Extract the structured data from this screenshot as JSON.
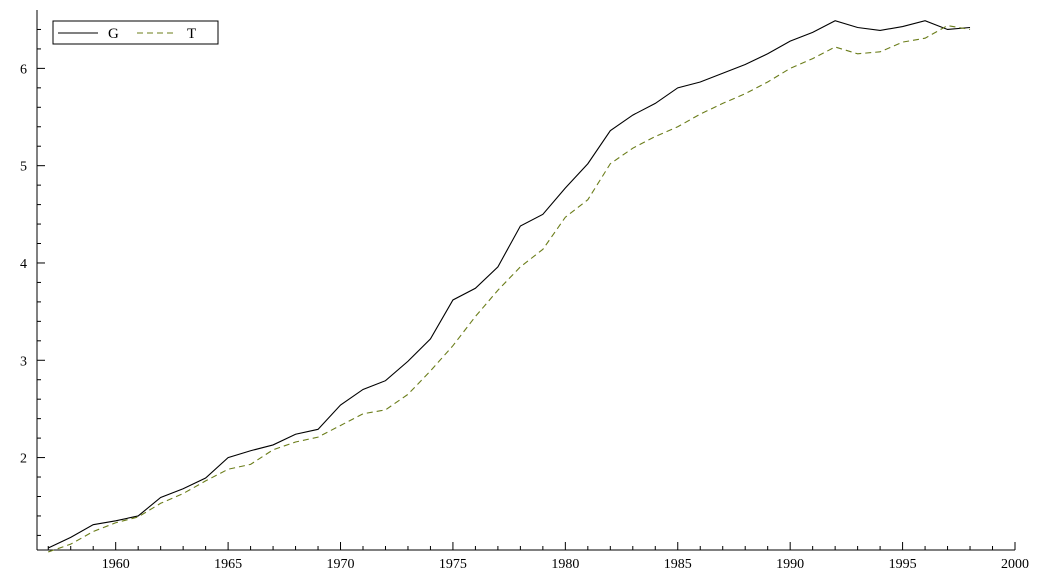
{
  "chart_data": {
    "type": "line",
    "title": "",
    "xlabel": "",
    "ylabel": "",
    "xlim": [
      1956.5,
      2000
    ],
    "ylim": [
      1.05,
      6.6
    ],
    "grid": false,
    "legend": {
      "placement": "top-left",
      "entries": [
        "G",
        "T"
      ]
    },
    "x_ticks": [
      1960,
      1965,
      1970,
      1975,
      1980,
      1985,
      1990,
      1995,
      2000
    ],
    "y_ticks": [
      2,
      3,
      4,
      5,
      6
    ],
    "x": [
      1957,
      1958,
      1959,
      1960,
      1961,
      1962,
      1963,
      1964,
      1965,
      1966,
      1967,
      1968,
      1969,
      1970,
      1971,
      1972,
      1973,
      1974,
      1975,
      1976,
      1977,
      1978,
      1979,
      1980,
      1981,
      1982,
      1983,
      1984,
      1985,
      1986,
      1987,
      1988,
      1989,
      1990,
      1991,
      1992,
      1993,
      1994,
      1995,
      1996,
      1997,
      1998
    ],
    "series": [
      {
        "name": "G",
        "color": "#000000",
        "dash": "solid",
        "values": [
          1.07,
          1.18,
          1.31,
          1.35,
          1.4,
          1.59,
          1.68,
          1.79,
          2.0,
          2.07,
          2.13,
          2.24,
          2.29,
          2.54,
          2.7,
          2.79,
          2.99,
          3.22,
          3.62,
          3.74,
          3.96,
          4.38,
          4.5,
          4.77,
          5.02,
          5.36,
          5.52,
          5.64,
          5.8,
          5.86,
          5.95,
          6.04,
          6.15,
          6.28,
          6.37,
          6.49,
          6.42,
          6.39,
          6.43,
          6.49,
          6.4,
          6.42
        ]
      },
      {
        "name": "T",
        "color": "#6b7d1a",
        "dash": "dashed",
        "values": [
          1.03,
          1.11,
          1.24,
          1.33,
          1.39,
          1.53,
          1.63,
          1.76,
          1.88,
          1.93,
          2.08,
          2.16,
          2.21,
          2.33,
          2.45,
          2.49,
          2.65,
          2.89,
          3.15,
          3.45,
          3.72,
          3.96,
          4.14,
          4.47,
          4.65,
          5.02,
          5.18,
          5.3,
          5.4,
          5.53,
          5.64,
          5.74,
          5.86,
          6.0,
          6.1,
          6.22,
          6.15,
          6.17,
          6.27,
          6.31,
          6.44,
          6.4
        ]
      }
    ]
  }
}
